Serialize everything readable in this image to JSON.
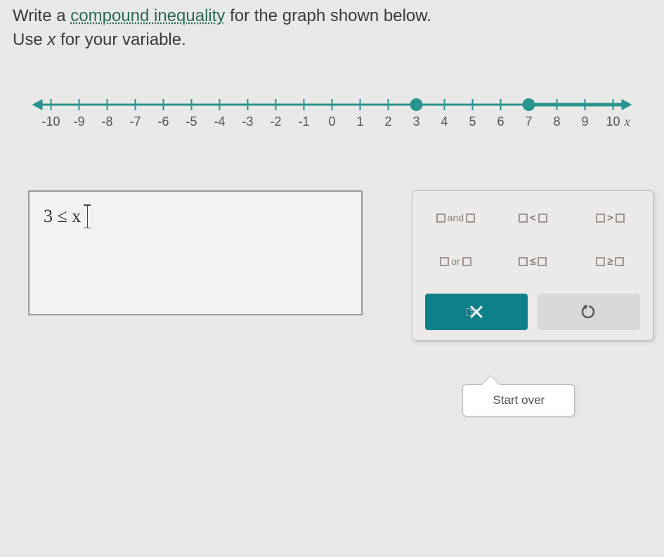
{
  "prompt": {
    "line1_pre": "Write a ",
    "line1_link": "compound inequality",
    "line1_post": " for the graph shown below.",
    "line2_pre": "Use ",
    "line2_var": "x",
    "line2_post": " for your variable."
  },
  "numberline": {
    "ticks": [
      "-10",
      "-9",
      "-8",
      "-7",
      "-6",
      "-5",
      "-4",
      "-3",
      "-2",
      "-1",
      "0",
      "1",
      "2",
      "3",
      "4",
      "5",
      "6",
      "7",
      "8",
      "9",
      "10"
    ],
    "axis_label": "x",
    "line_color": "#28938f",
    "tick_color": "#555",
    "label_color": "#555",
    "default_color": "#28938f",
    "highlight_color": "#28938f",
    "dot_fill": "#28938f",
    "closed_dot_at": 3,
    "segment_a": {
      "from": 3,
      "to": 7,
      "open_start": false,
      "open_end": true
    },
    "ray_b_from": 7,
    "open_circle_at": 7
  },
  "answer": {
    "current": "3 ≤ x"
  },
  "palette": {
    "row1": [
      {
        "name": "and-operator",
        "kind": "and"
      },
      {
        "name": "less-than",
        "kind": "lt"
      },
      {
        "name": "greater-than",
        "kind": "gt"
      }
    ],
    "row2": [
      {
        "name": "or-operator",
        "kind": "or"
      },
      {
        "name": "less-eq",
        "kind": "le"
      },
      {
        "name": "greater-eq",
        "kind": "ge"
      }
    ],
    "and_label": "and",
    "or_label": "or",
    "lt_sym": "<",
    "gt_sym": ">",
    "le_sym": "≤",
    "ge_sym": "≥",
    "startover_label": "Start over",
    "startover_bg": "#0d8089",
    "undo_bg": "#d8d8d6"
  },
  "tooltip": {
    "text": "Start over"
  }
}
